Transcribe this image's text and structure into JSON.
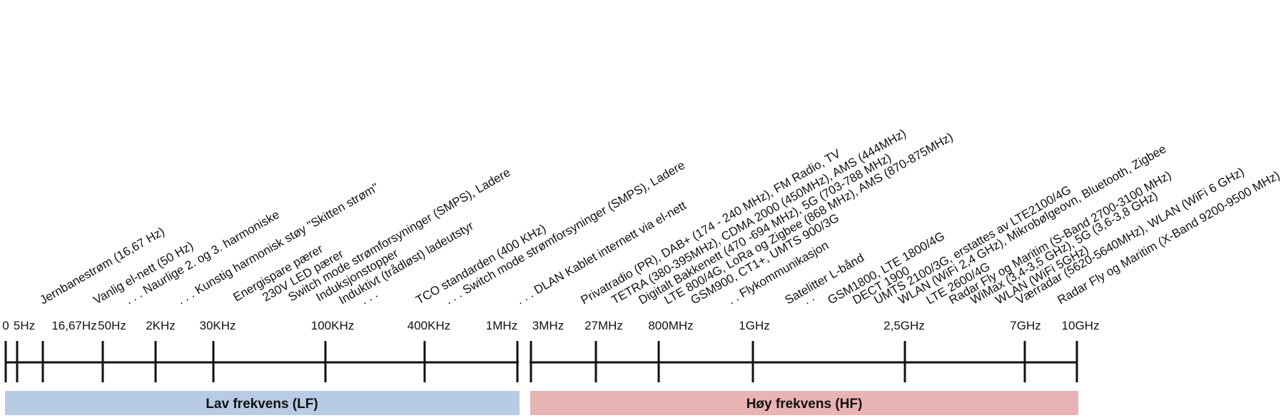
{
  "scale": {
    "low_ticks": [
      "0",
      "5Hz",
      "16,67Hz",
      "50Hz",
      "2KHz",
      "30KHz",
      "100KHz",
      "400KHz",
      "1MHz"
    ],
    "high_ticks": [
      "3MHz",
      "27MHz",
      "800MHz",
      "1GHz",
      "2,5GHz",
      "7GHz",
      "10GHz"
    ]
  },
  "bands": {
    "low": {
      "label": "Lav frekvens (LF)",
      "color": "#b7cbe4"
    },
    "high": {
      "label": "Høy frekvens (HF)",
      "color": "#e8b3b3"
    }
  },
  "labels": [
    {
      "text": "Jernbanestrøm (16,67 Hz)"
    },
    {
      "text": "Vanlig el-nett (50 Hz)"
    },
    {
      "text": ". . . Naurlige 2. og 3. harmoniske"
    },
    {
      "text": ". . . Kunstig harmonisk støy \"Skitten strøm\""
    },
    {
      "text": "Energispare pærer"
    },
    {
      "text": "230V LED pærer"
    },
    {
      "text": "Switch mode strømforsyninger (SMPS), Ladere"
    },
    {
      "text": "Induksjonstopper"
    },
    {
      "text": "Induktivt (trådløst) ladeutstyr"
    },
    {
      "text": ". . ."
    },
    {
      "text": "TCO standarden (400 KHz)"
    },
    {
      "text": ". . . Switch mode strømforsyninger (SMPS), Ladere"
    },
    {
      "text": ". . . DLAN Kablet internett via el-nett"
    },
    {
      "text": "Privatradio (PR), DAB+ (174 - 240 MHz), FM Radio, TV"
    },
    {
      "text": "TETRA (380-395MHz), CDMA 2000 (450MHz), AMS (444MHz)"
    },
    {
      "text": "Digitalt Bakkenett (470 -694 MHz), 5G (703-788 MHz)"
    },
    {
      "text": "LTE 800/4G, LoRa og Zigbee (868 MHz), AMS (870-875MHz)"
    },
    {
      "text": "GSM900, CT1+, UMTS 900/3G"
    },
    {
      "text": ". . Flykommunikasjon"
    },
    {
      "text": "Satelitter L-bånd"
    },
    {
      "text": ". ."
    },
    {
      "text": "GSM1800, LTE 1800/4G"
    },
    {
      "text": "DECT 1900"
    },
    {
      "text": "UMTS 2100/3G, erstattes av LTE2100/4G"
    },
    {
      "text": "WLAN (WiFi 2,4 GHz), Mikrobølgeovn, Bluetooth, Zigbee"
    },
    {
      "text": "LTE 2600/4G"
    },
    {
      "text": "Radar Fly og Maritim (S-Band 2700-3100 MHz)"
    },
    {
      "text": "WiMax (3,4-3,5 GHz), 5G (3,6-3,8 GHz)"
    },
    {
      "text": "WLAN (WiFi 5GHz)"
    },
    {
      "text": "Værradar (5620-5640MHz), WLAN (WiFi 6 GHz)"
    },
    {
      "text": "Radar Fly og Maritim (X-Band 9200-9500 MHz)"
    }
  ]
}
